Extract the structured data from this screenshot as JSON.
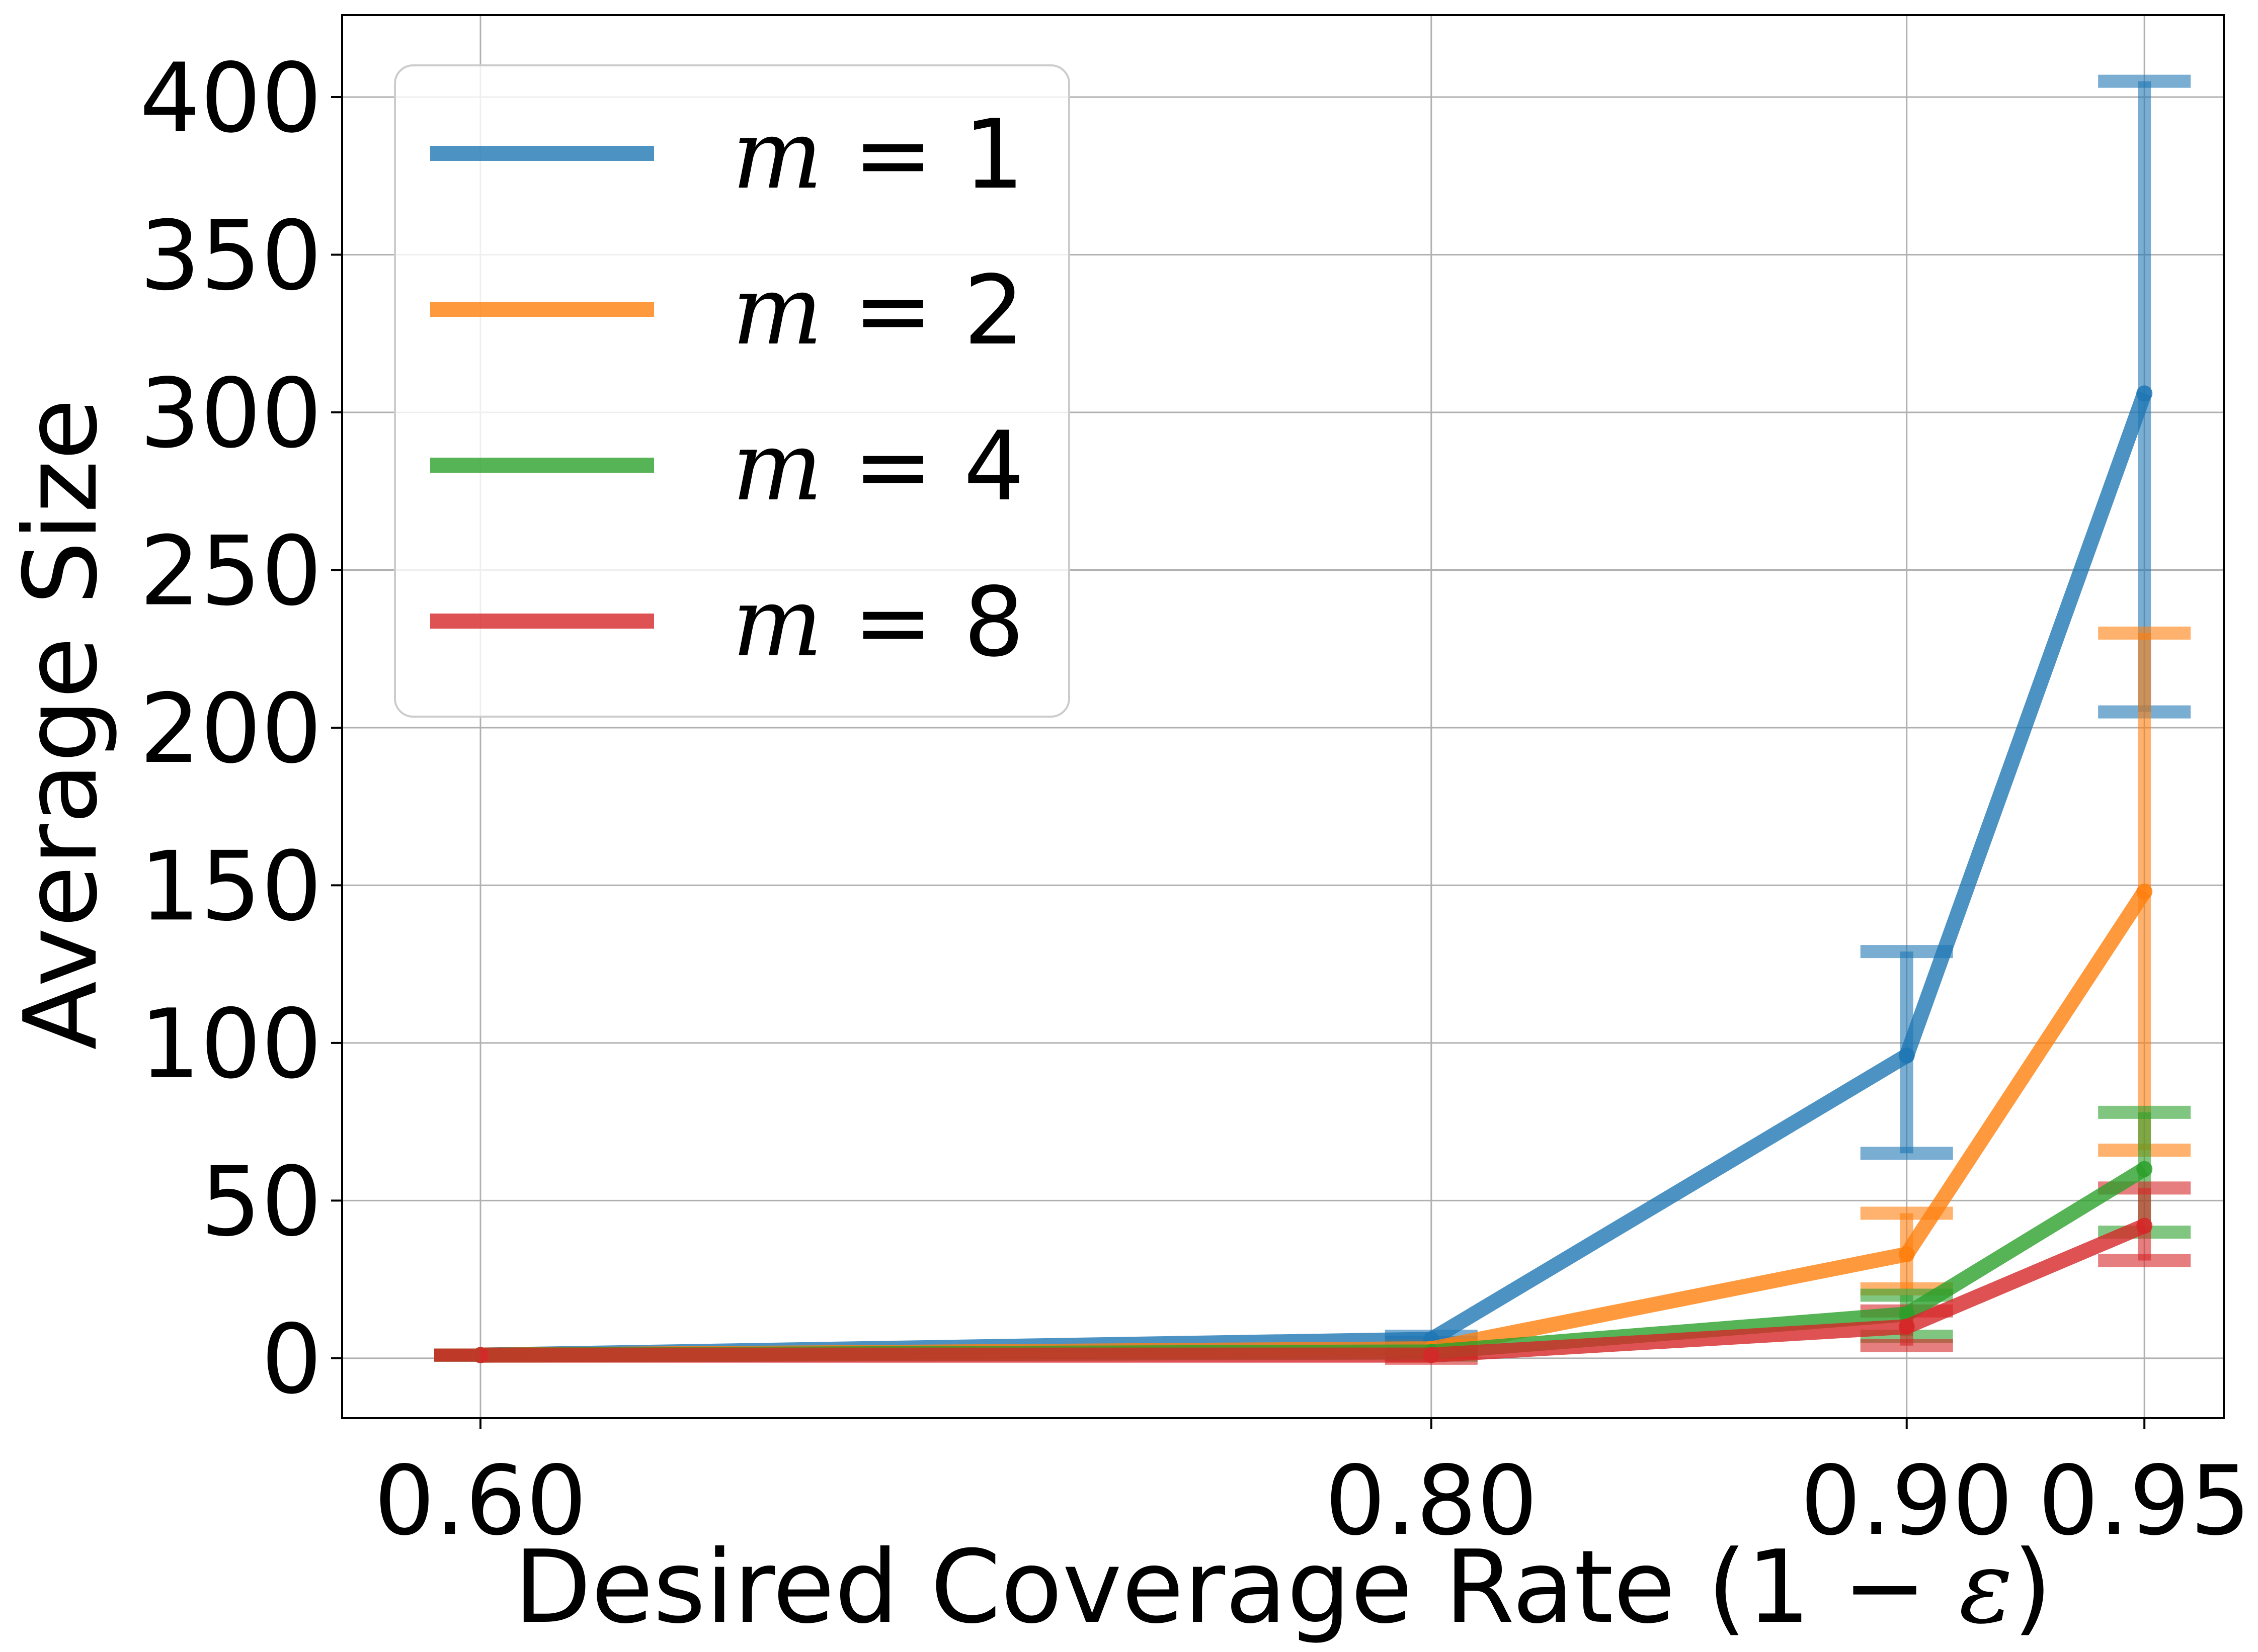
{
  "chart_data": {
    "type": "line",
    "xlabel_prefix": "Desired Coverage Rate (1 − ",
    "xlabel_symbol": "ε",
    "xlabel_suffix": ")",
    "ylabel": "Average Size",
    "x": [
      0.6,
      0.8,
      0.9,
      0.95
    ],
    "xticks": [
      "0.60",
      "0.80",
      "0.90",
      "0.95"
    ],
    "yticks": [
      "0",
      "50",
      "100",
      "150",
      "200",
      "250",
      "300",
      "350",
      "400"
    ],
    "ytick_values": [
      0,
      50,
      100,
      150,
      200,
      250,
      300,
      350,
      400
    ],
    "xlim": [
      0.5709,
      0.9667
    ],
    "ylim": [
      -19,
      426
    ],
    "grid": true,
    "legend_position": "top-left",
    "series": [
      {
        "name": "m = 1",
        "var": "m",
        "num": "1",
        "color": "#1f77b4",
        "values": [
          1,
          6,
          96,
          306
        ],
        "err_low": [
          1,
          5,
          65,
          205
        ],
        "err_high": [
          1,
          7,
          129,
          405
        ]
      },
      {
        "name": "m = 2",
        "var": "m",
        "num": "2",
        "color": "#ff7f0e",
        "values": [
          1,
          3,
          33,
          148
        ],
        "err_low": [
          1,
          2,
          22,
          66
        ],
        "err_high": [
          1,
          4,
          46,
          230
        ]
      },
      {
        "name": "m = 4",
        "var": "m",
        "num": "4",
        "color": "#2ca02c",
        "values": [
          1,
          2,
          14,
          60
        ],
        "err_low": [
          1,
          1,
          7,
          40
        ],
        "err_high": [
          1,
          3,
          20,
          78
        ]
      },
      {
        "name": "m = 8",
        "var": "m",
        "num": "8",
        "color": "#d62728",
        "values": [
          1,
          1,
          10,
          42
        ],
        "err_low": [
          1,
          0,
          4,
          31
        ],
        "err_high": [
          1,
          2,
          15,
          54
        ]
      }
    ]
  }
}
